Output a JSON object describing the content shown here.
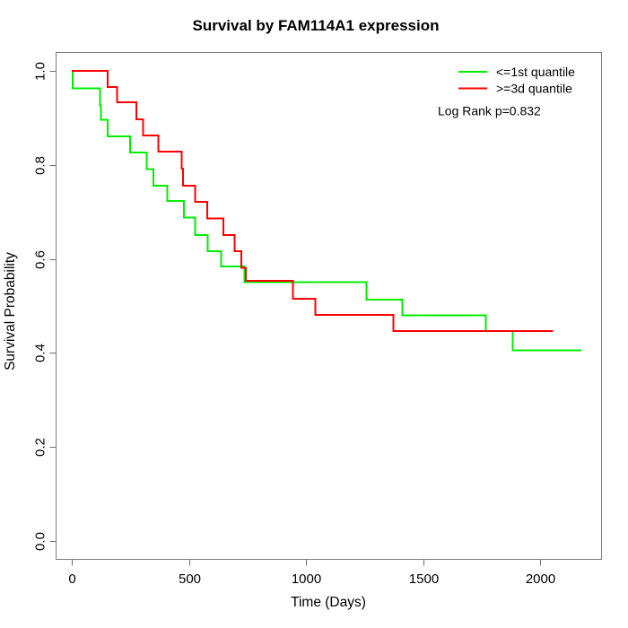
{
  "chart_data": {
    "type": "line",
    "subtype": "kaplan-meier-step",
    "title": "Survival by FAM114A1 expression",
    "xlabel": "Time (Days)",
    "ylabel": "Survival Probability",
    "grid": false,
    "legend_position": "top-right",
    "annotation": "Log Rank p=0.832",
    "x_axis": {
      "ticks": [
        0,
        500,
        1000,
        1500,
        2000
      ],
      "range_days": [
        0,
        2261
      ]
    },
    "y_axis": {
      "ticks": [
        {
          "value": 0.0,
          "label": "0.0"
        },
        {
          "value": 0.2,
          "label": "0.2"
        },
        {
          "value": 0.4,
          "label": "0.4"
        },
        {
          "value": 0.6,
          "label": "0.6"
        },
        {
          "value": 0.8,
          "label": "0.8"
        },
        {
          "value": 1.0,
          "label": "1.0"
        }
      ],
      "range": [
        0,
        1
      ]
    },
    "series": [
      {
        "name": "<=1st quantile",
        "color": "#00EE00",
        "end_time": 2177,
        "points": [
          [
            0,
            1.0
          ],
          [
            4,
            0.963
          ],
          [
            121,
            0.927
          ],
          [
            125,
            0.896
          ],
          [
            153,
            0.861
          ],
          [
            249,
            0.826
          ],
          [
            319,
            0.791
          ],
          [
            349,
            0.756
          ],
          [
            409,
            0.723
          ],
          [
            479,
            0.688
          ],
          [
            527,
            0.651
          ],
          [
            581,
            0.616
          ],
          [
            638,
            0.584
          ],
          [
            738,
            0.551
          ],
          [
            1258,
            0.513
          ],
          [
            1411,
            0.48
          ],
          [
            1769,
            0.447
          ],
          [
            1884,
            0.406
          ]
        ]
      },
      {
        "name": ">=3d quantile",
        "color": "#FF0000",
        "end_time": 2056,
        "points": [
          [
            0,
            1.0
          ],
          [
            153,
            0.966
          ],
          [
            194,
            0.933
          ],
          [
            275,
            0.897
          ],
          [
            304,
            0.863
          ],
          [
            370,
            0.828
          ],
          [
            470,
            0.792
          ],
          [
            475,
            0.756
          ],
          [
            527,
            0.721
          ],
          [
            578,
            0.686
          ],
          [
            647,
            0.651
          ],
          [
            696,
            0.616
          ],
          [
            724,
            0.581
          ],
          [
            743,
            0.553
          ],
          [
            945,
            0.515
          ],
          [
            1041,
            0.481
          ],
          [
            1373,
            0.447
          ]
        ]
      }
    ]
  },
  "colors": {
    "box": "#7d7d7d",
    "tick": "#6e6e6e",
    "text": "#000000"
  }
}
